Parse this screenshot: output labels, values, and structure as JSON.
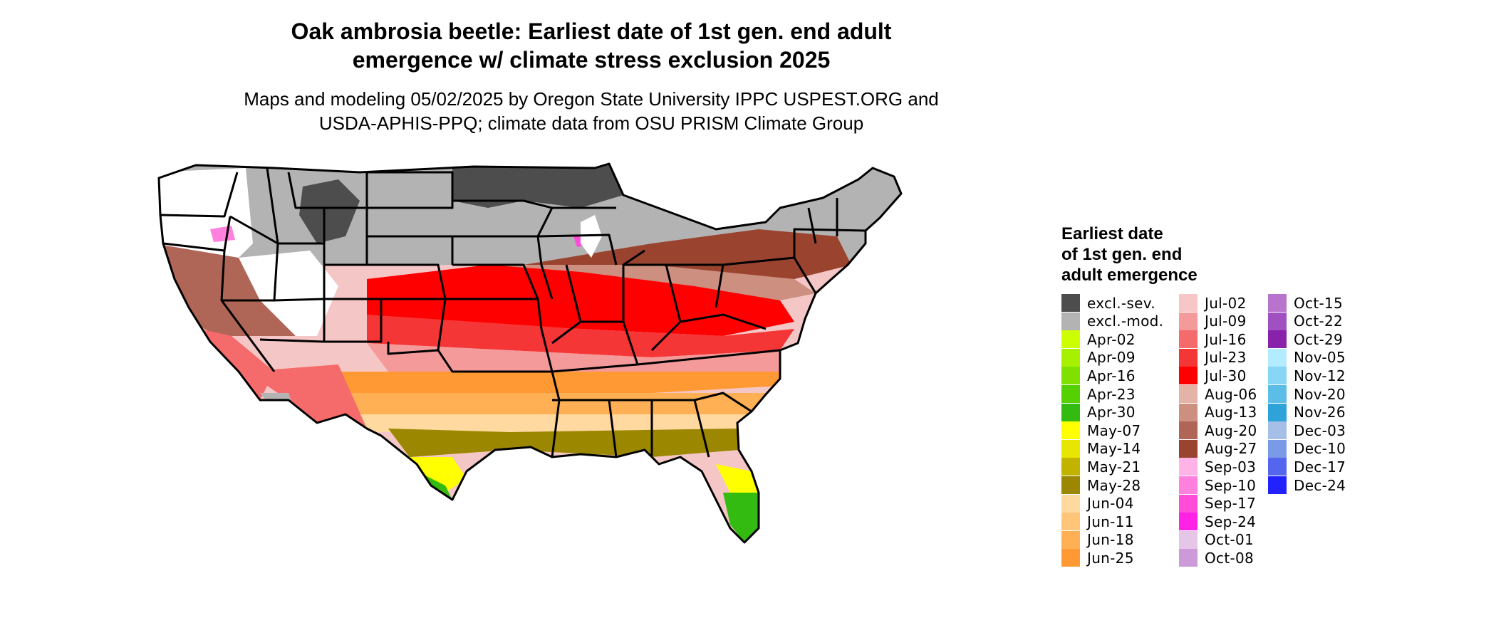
{
  "title_line1": "Oak ambrosia beetle: Earliest date of 1st gen. end adult",
  "title_line2": "emergence w/ climate stress exclusion 2025",
  "subtitle_line1": "Maps and modeling 05/02/2025 by Oregon State University IPPC USPEST.ORG and",
  "subtitle_line2": "USDA-APHIS-PPQ; climate data from OSU PRISM Climate Group",
  "legend": {
    "title_line1": "Earliest date",
    "title_line2": "of 1st gen. end",
    "title_line3": "adult emergence",
    "items": [
      {
        "label": "excl.-sev.",
        "color": "#4d4d4d"
      },
      {
        "label": "excl.-mod.",
        "color": "#b3b3b3"
      },
      {
        "label": "Apr-02",
        "color": "#ccff00"
      },
      {
        "label": "Apr-09",
        "color": "#a6f000"
      },
      {
        "label": "Apr-16",
        "color": "#80e000"
      },
      {
        "label": "Apr-23",
        "color": "#55d000"
      },
      {
        "label": "Apr-30",
        "color": "#33bb11"
      },
      {
        "label": "May-07",
        "color": "#ffff00"
      },
      {
        "label": "May-14",
        "color": "#e6e600"
      },
      {
        "label": "May-21",
        "color": "#c2b300"
      },
      {
        "label": "May-28",
        "color": "#9b8700"
      },
      {
        "label": "Jun-04",
        "color": "#ffd9a0"
      },
      {
        "label": "Jun-11",
        "color": "#ffc67a"
      },
      {
        "label": "Jun-18",
        "color": "#ffb055"
      },
      {
        "label": "Jun-25",
        "color": "#ff9933"
      },
      {
        "label": "Jul-02",
        "color": "#f7c6c6"
      },
      {
        "label": "Jul-09",
        "color": "#f59a9a"
      },
      {
        "label": "Jul-16",
        "color": "#f56b6b"
      },
      {
        "label": "Jul-23",
        "color": "#f53636"
      },
      {
        "label": "Jul-30",
        "color": "#ff0000"
      },
      {
        "label": "Aug-06",
        "color": "#e3b3a8"
      },
      {
        "label": "Aug-13",
        "color": "#cc8f80"
      },
      {
        "label": "Aug-20",
        "color": "#b06657"
      },
      {
        "label": "Aug-27",
        "color": "#9a4430"
      },
      {
        "label": "Sep-03",
        "color": "#ffb3e6"
      },
      {
        "label": "Sep-10",
        "color": "#ff80dd"
      },
      {
        "label": "Sep-17",
        "color": "#ff4dd8"
      },
      {
        "label": "Sep-24",
        "color": "#ff22e6"
      },
      {
        "label": "Oct-01",
        "color": "#e6c6e6"
      },
      {
        "label": "Oct-08",
        "color": "#cc99d9"
      },
      {
        "label": "Oct-15",
        "color": "#b873cc"
      },
      {
        "label": "Oct-22",
        "color": "#a050c0"
      },
      {
        "label": "Oct-29",
        "color": "#8822aa"
      },
      {
        "label": "Nov-05",
        "color": "#b3ebff"
      },
      {
        "label": "Nov-12",
        "color": "#88d6f5"
      },
      {
        "label": "Nov-20",
        "color": "#5cbde6"
      },
      {
        "label": "Nov-26",
        "color": "#2ea3d9"
      },
      {
        "label": "Dec-03",
        "color": "#a6bfe6"
      },
      {
        "label": "Dec-10",
        "color": "#7a99e6"
      },
      {
        "label": "Dec-17",
        "color": "#5566ee"
      },
      {
        "label": "Dec-24",
        "color": "#2222ff"
      }
    ]
  }
}
